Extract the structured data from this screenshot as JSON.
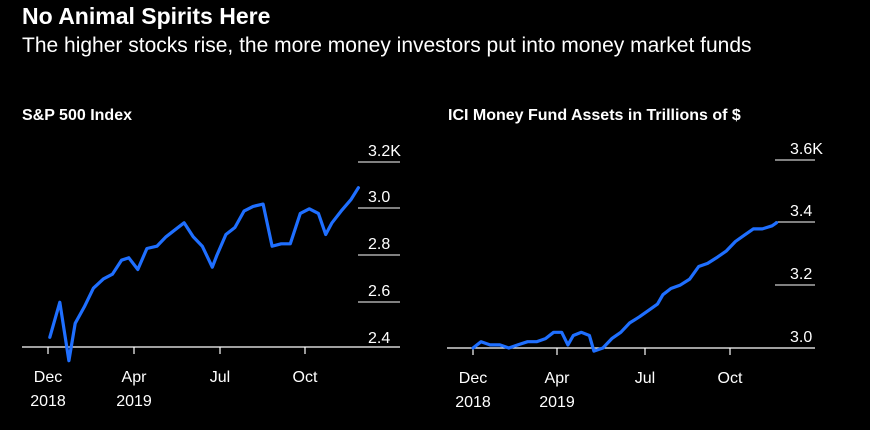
{
  "title": "No Animal Spirits Here",
  "subtitle": "The higher stocks rise, the more money investors put into money market funds",
  "colors": {
    "line": "#1f6fff",
    "background": "#000000",
    "text": "#ffffff"
  },
  "chart_data": [
    {
      "type": "line",
      "title": "S&P 500 Index",
      "x_ticks": [
        {
          "label": "Dec",
          "sub": "2018"
        },
        {
          "label": "Apr",
          "sub": "2019"
        },
        {
          "label": "Jul",
          "sub": ""
        },
        {
          "label": "Oct",
          "sub": ""
        }
      ],
      "y_ticks": [
        "3.2K",
        "3.0",
        "2.8",
        "2.6",
        "2.4"
      ],
      "ylim": [
        2.4,
        3.2
      ],
      "xlim": [
        "2018-12",
        "2019-11"
      ],
      "series": [
        {
          "values": [
            [
              "2018-12-03",
              2.45
            ],
            [
              "2018-12-14",
              2.6
            ],
            [
              "2018-12-24",
              2.35
            ],
            [
              "2018-12-31",
              2.51
            ],
            [
              "2019-01-10",
              2.58
            ],
            [
              "2019-01-20",
              2.66
            ],
            [
              "2019-01-31",
              2.7
            ],
            [
              "2019-02-10",
              2.72
            ],
            [
              "2019-02-20",
              2.78
            ],
            [
              "2019-02-28",
              2.79
            ],
            [
              "2019-03-10",
              2.74
            ],
            [
              "2019-03-20",
              2.83
            ],
            [
              "2019-03-31",
              2.84
            ],
            [
              "2019-04-10",
              2.88
            ],
            [
              "2019-04-20",
              2.91
            ],
            [
              "2019-04-30",
              2.94
            ],
            [
              "2019-05-10",
              2.88
            ],
            [
              "2019-05-20",
              2.84
            ],
            [
              "2019-05-31",
              2.75
            ],
            [
              "2019-06-05",
              2.8
            ],
            [
              "2019-06-15",
              2.89
            ],
            [
              "2019-06-25",
              2.92
            ],
            [
              "2019-07-05",
              2.99
            ],
            [
              "2019-07-15",
              3.01
            ],
            [
              "2019-07-26",
              3.02
            ],
            [
              "2019-08-05",
              2.84
            ],
            [
              "2019-08-15",
              2.85
            ],
            [
              "2019-08-25",
              2.85
            ],
            [
              "2019-09-05",
              2.98
            ],
            [
              "2019-09-15",
              3.0
            ],
            [
              "2019-09-25",
              2.98
            ],
            [
              "2019-10-03",
              2.89
            ],
            [
              "2019-10-10",
              2.94
            ],
            [
              "2019-10-20",
              2.99
            ],
            [
              "2019-10-31",
              3.04
            ],
            [
              "2019-11-08",
              3.09
            ]
          ]
        }
      ]
    },
    {
      "type": "line",
      "title": "ICI Money Fund Assets in Trillions of $",
      "x_ticks": [
        {
          "label": "Dec",
          "sub": "2018"
        },
        {
          "label": "Apr",
          "sub": "2019"
        },
        {
          "label": "Jul",
          "sub": ""
        },
        {
          "label": "Oct",
          "sub": ""
        }
      ],
      "y_ticks": [
        "3.6K",
        "3.4",
        "3.2",
        "3.0"
      ],
      "ylim": [
        3.0,
        3.6
      ],
      "xlim": [
        "2018-12",
        "2019-11"
      ],
      "series": [
        {
          "values": [
            [
              "2018-12-01",
              3.0
            ],
            [
              "2018-12-10",
              3.02
            ],
            [
              "2018-12-20",
              3.01
            ],
            [
              "2018-12-31",
              3.01
            ],
            [
              "2019-01-10",
              3.0
            ],
            [
              "2019-01-20",
              3.01
            ],
            [
              "2019-01-31",
              3.02
            ],
            [
              "2019-02-10",
              3.02
            ],
            [
              "2019-02-20",
              3.03
            ],
            [
              "2019-03-01",
              3.05
            ],
            [
              "2019-03-10",
              3.05
            ],
            [
              "2019-03-17",
              3.01
            ],
            [
              "2019-03-23",
              3.04
            ],
            [
              "2019-04-01",
              3.05
            ],
            [
              "2019-04-10",
              3.04
            ],
            [
              "2019-04-15",
              2.99
            ],
            [
              "2019-04-25",
              3.0
            ],
            [
              "2019-05-05",
              3.03
            ],
            [
              "2019-05-15",
              3.05
            ],
            [
              "2019-05-25",
              3.08
            ],
            [
              "2019-06-05",
              3.1
            ],
            [
              "2019-06-15",
              3.12
            ],
            [
              "2019-06-25",
              3.14
            ],
            [
              "2019-07-01",
              3.17
            ],
            [
              "2019-07-10",
              3.19
            ],
            [
              "2019-07-20",
              3.2
            ],
            [
              "2019-07-31",
              3.22
            ],
            [
              "2019-08-10",
              3.26
            ],
            [
              "2019-08-20",
              3.27
            ],
            [
              "2019-08-31",
              3.29
            ],
            [
              "2019-09-10",
              3.31
            ],
            [
              "2019-09-20",
              3.34
            ],
            [
              "2019-09-30",
              3.36
            ],
            [
              "2019-10-10",
              3.38
            ],
            [
              "2019-10-20",
              3.38
            ],
            [
              "2019-10-31",
              3.39
            ],
            [
              "2019-11-05",
              3.4
            ]
          ]
        }
      ]
    }
  ]
}
